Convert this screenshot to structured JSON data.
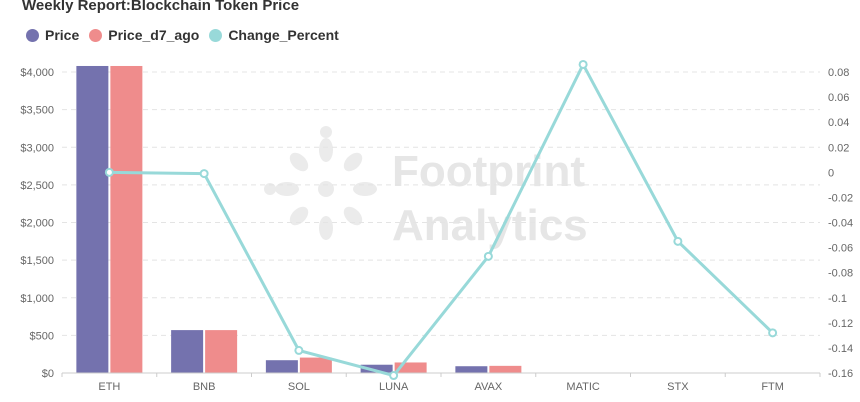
{
  "title": "Weekly Report:Blockchain Token Price",
  "watermark": {
    "line1": "Footprint",
    "line2": "Analytics"
  },
  "legend": [
    {
      "label": "Price",
      "color": "#7472ae"
    },
    {
      "label": "Price_d7_ago",
      "color": "#ef8c8c"
    },
    {
      "label": "Change_Percent",
      "color": "#98d9d9"
    }
  ],
  "chart_data": {
    "type": "bar",
    "categories": [
      "ETH",
      "BNB",
      "SOL",
      "LUNA",
      "AVAX",
      "MATIC",
      "STX",
      "FTM"
    ],
    "series": [
      {
        "name": "Price",
        "type": "bar",
        "axis": "left",
        "color": "#7472ae",
        "values": [
          4080,
          570,
          170,
          110,
          90,
          0,
          0,
          0
        ]
      },
      {
        "name": "Price_d7_ago",
        "type": "bar",
        "axis": "left",
        "color": "#ef8c8c",
        "values": [
          4080,
          570,
          205,
          140,
          95,
          0,
          0,
          0
        ]
      },
      {
        "name": "Change_Percent",
        "type": "line",
        "axis": "right",
        "color": "#98d9d9",
        "values": [
          0.0,
          -0.001,
          -0.142,
          -0.162,
          -0.067,
          0.086,
          -0.055,
          -0.128
        ]
      }
    ],
    "left_axis": {
      "min": 0,
      "max": 4000,
      "step": 500,
      "ticks": [
        "$0",
        "$500",
        "$1,000",
        "$1,500",
        "$2,000",
        "$2,500",
        "$3,000",
        "$3,500",
        "$4,000"
      ]
    },
    "right_axis": {
      "min": -0.16,
      "max": 0.08,
      "step": 0.02,
      "ticks": [
        "-0.16",
        "-0.14",
        "-0.12",
        "-0.1",
        "-0.08",
        "-0.06",
        "-0.04",
        "-0.02",
        "0",
        "0.02",
        "0.04",
        "0.06",
        "0.08"
      ]
    },
    "grid": true,
    "legend_position": "top-left"
  }
}
